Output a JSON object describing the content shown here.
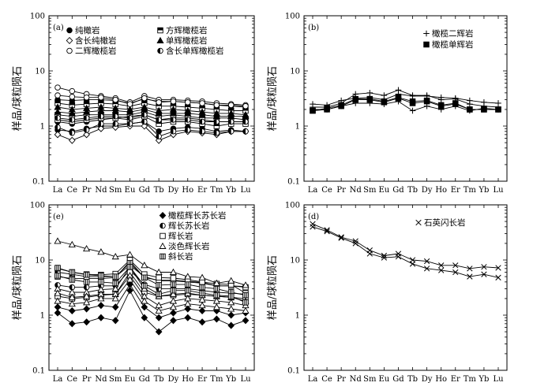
{
  "figure": {
    "y_axis_label": "样品/球粒陨石"
  },
  "chart_data": [
    {
      "type": "line",
      "panel_label": "(a)",
      "categories": [
        "La",
        "Ce",
        "Pr",
        "Nd",
        "Sm",
        "Eu",
        "Gd",
        "Tb",
        "Dy",
        "Ho",
        "Er",
        "Tm",
        "Yb",
        "Lu"
      ],
      "ylabel": "样品/球粒陨石",
      "yscale": "log",
      "ylim": [
        0.1,
        100
      ],
      "yticks": [
        "0.1",
        "1",
        "10",
        "100"
      ],
      "legend": [
        {
          "marker": "filled-circle",
          "label": "纯橄岩"
        },
        {
          "marker": "half-square",
          "label": "方辉橄榄岩"
        },
        {
          "marker": "open-diamond",
          "label": "含长纯橄岩"
        },
        {
          "marker": "filled-triangle",
          "label": "单辉橄榄岩"
        },
        {
          "marker": "open-circle",
          "label": "二辉橄榄岩"
        },
        {
          "marker": "half-circle",
          "label": "含长单辉橄榄岩"
        }
      ],
      "series": [
        {
          "name": "纯橄岩",
          "marker": "filled-circle",
          "values": [
            3.0,
            2.9,
            3.0,
            3.0,
            2.9,
            2.6,
            3.1,
            2.8,
            2.8,
            2.7,
            2.6,
            2.4,
            2.3,
            2.2
          ]
        },
        {
          "name": "纯橄岩",
          "marker": "filled-circle",
          "values": [
            1.2,
            1.1,
            1.2,
            1.3,
            1.4,
            1.5,
            1.6,
            1.3,
            1.4,
            1.4,
            1.3,
            1.2,
            1.2,
            1.2
          ]
        },
        {
          "name": "纯橄岩",
          "marker": "filled-circle",
          "values": [
            0.85,
            0.8,
            0.9,
            1.0,
            1.0,
            1.1,
            1.2,
            0.8,
            0.9,
            0.95,
            0.9,
            0.8,
            0.85,
            0.8
          ]
        },
        {
          "name": "方辉橄榄岩",
          "marker": "half-square",
          "values": [
            2.6,
            2.4,
            2.5,
            2.6,
            2.5,
            2.3,
            2.6,
            2.3,
            2.3,
            2.2,
            2.1,
            2.0,
            1.9,
            1.9
          ]
        },
        {
          "name": "方辉橄榄岩",
          "marker": "half-square",
          "values": [
            1.3,
            1.2,
            1.3,
            1.4,
            1.4,
            1.3,
            1.5,
            1.1,
            1.2,
            1.2,
            1.1,
            1.0,
            1.1,
            1.1
          ]
        },
        {
          "name": "方辉橄榄岩",
          "marker": "half-square",
          "values": [
            1.6,
            1.5,
            1.6,
            1.6,
            1.6,
            1.6,
            1.8,
            1.5,
            1.6,
            1.5,
            1.4,
            1.4,
            1.4,
            1.3
          ]
        },
        {
          "name": "含长纯橄岩",
          "marker": "open-diamond",
          "values": [
            0.7,
            0.55,
            0.7,
            0.9,
            0.95,
            1.0,
            1.0,
            0.55,
            0.7,
            0.8,
            0.75,
            0.7,
            0.8,
            0.8
          ]
        },
        {
          "name": "单辉橄榄岩",
          "marker": "filled-triangle",
          "values": [
            1.8,
            1.7,
            1.8,
            1.9,
            1.9,
            1.8,
            2.0,
            1.7,
            1.7,
            1.7,
            1.6,
            1.5,
            1.5,
            1.5
          ]
        },
        {
          "name": "单辉橄榄岩",
          "marker": "filled-triangle",
          "values": [
            2.2,
            2.0,
            2.1,
            2.2,
            2.1,
            2.0,
            2.2,
            1.9,
            2.0,
            1.9,
            1.8,
            1.7,
            1.7,
            1.6
          ]
        },
        {
          "name": "二辉橄榄岩",
          "marker": "open-circle",
          "values": [
            5.0,
            4.3,
            3.8,
            3.5,
            3.2,
            2.7,
            3.5,
            3.0,
            3.0,
            2.9,
            2.8,
            2.6,
            2.5,
            2.4
          ]
        },
        {
          "name": "二辉橄榄岩",
          "marker": "open-circle",
          "values": [
            3.6,
            3.4,
            3.3,
            3.3,
            3.0,
            2.5,
            3.2,
            2.7,
            2.8,
            2.7,
            2.6,
            2.4,
            2.4,
            2.3
          ]
        },
        {
          "name": "含长单辉橄榄岩",
          "marker": "half-circle",
          "values": [
            0.95,
            0.75,
            0.85,
            1.1,
            1.1,
            1.1,
            1.2,
            0.65,
            0.8,
            0.85,
            0.8,
            0.75,
            0.8,
            0.8
          ]
        },
        {
          "name": "含长单辉橄榄岩",
          "marker": "half-circle",
          "values": [
            1.4,
            1.3,
            1.4,
            1.5,
            1.5,
            1.4,
            1.6,
            1.3,
            1.3,
            1.3,
            1.2,
            1.2,
            1.2,
            1.2
          ]
        }
      ]
    },
    {
      "type": "line",
      "panel_label": "(b)",
      "categories": [
        "La",
        "Ce",
        "Pr",
        "Nd",
        "Sm",
        "Eu",
        "Gd",
        "Tb",
        "Dy",
        "Ho",
        "Er",
        "Tm",
        "Yb",
        "Lu"
      ],
      "ylabel": "样品/球粒陨石",
      "yscale": "log",
      "ylim": [
        0.1,
        100
      ],
      "yticks": [
        "0.1",
        "1",
        "10",
        "100"
      ],
      "legend": [
        {
          "marker": "plus",
          "label": "橄榄二辉岩"
        },
        {
          "marker": "filled-square",
          "label": "橄榄单辉岩"
        }
      ],
      "series": [
        {
          "name": "橄榄二辉岩",
          "marker": "plus",
          "values": [
            2.5,
            2.4,
            2.9,
            3.2,
            3.3,
            3.0,
            3.8,
            3.5,
            3.5,
            3.3,
            3.2,
            2.9,
            2.7,
            2.6
          ]
        },
        {
          "name": "橄榄二辉岩",
          "marker": "plus",
          "values": [
            2.2,
            2.2,
            2.6,
            3.8,
            4.0,
            3.6,
            4.5,
            3.6,
            3.6,
            3.0,
            3.1,
            2.5,
            2.3,
            2.2
          ]
        },
        {
          "name": "橄榄二辉岩",
          "marker": "plus",
          "values": [
            2.0,
            2.0,
            2.3,
            2.6,
            2.6,
            2.5,
            2.8,
            1.9,
            2.3,
            2.0,
            2.3,
            1.9,
            2.1,
            2.0
          ]
        },
        {
          "name": "橄榄单辉岩",
          "marker": "filled-square",
          "values": [
            1.9,
            2.0,
            2.3,
            3.0,
            3.0,
            2.7,
            3.2,
            2.6,
            2.8,
            2.3,
            2.5,
            2.0,
            2.0,
            2.0
          ]
        },
        {
          "name": "橄榄单辉岩",
          "marker": "filled-square",
          "values": [
            1.9,
            2.1,
            2.4,
            3.1,
            3.1,
            2.8,
            3.3,
            2.8,
            2.9,
            2.4,
            2.6,
            2.0,
            2.0,
            2.0
          ]
        }
      ]
    },
    {
      "type": "line",
      "panel_label": "(e)",
      "categories": [
        "La",
        "Ce",
        "Pr",
        "Nd",
        "Sm",
        "Eu",
        "Gd",
        "Tb",
        "Dy",
        "Ho",
        "Er",
        "Tm",
        "Yb",
        "Lu"
      ],
      "ylabel": "样品/球粒陨石",
      "yscale": "log",
      "ylim": [
        0.1,
        100
      ],
      "yticks": [
        "0.1",
        "1",
        "10",
        "100"
      ],
      "legend": [
        {
          "marker": "filled-diamond",
          "label": "橄榄辉长苏长岩"
        },
        {
          "marker": "half-circle",
          "label": "辉长苏长岩"
        },
        {
          "marker": "open-square",
          "label": "辉长岩"
        },
        {
          "marker": "open-triangle",
          "label": "淡色辉长岩"
        },
        {
          "marker": "striped-square",
          "label": "斜长岩"
        }
      ],
      "series": [
        {
          "name": "橄榄辉长苏长岩",
          "marker": "filled-diamond",
          "values": [
            1.1,
            0.7,
            0.75,
            0.9,
            0.8,
            2.8,
            0.9,
            0.5,
            0.8,
            0.9,
            0.75,
            0.85,
            0.65,
            0.8
          ]
        },
        {
          "name": "橄榄辉长苏长岩",
          "marker": "filled-diamond",
          "values": [
            1.4,
            1.2,
            1.3,
            1.5,
            1.4,
            3.6,
            1.4,
            0.9,
            1.1,
            1.3,
            1.2,
            1.2,
            1.0,
            1.1
          ]
        },
        {
          "name": "辉长苏长岩",
          "marker": "half-circle",
          "values": [
            6.0,
            5.5,
            5.0,
            5.0,
            5.0,
            8.0,
            5.0,
            4.2,
            4.2,
            4.0,
            3.8,
            3.4,
            3.4,
            3.3
          ]
        },
        {
          "name": "辉长苏长岩",
          "marker": "half-circle",
          "values": [
            3.5,
            3.2,
            3.2,
            3.4,
            3.4,
            6.5,
            3.6,
            3.0,
            3.0,
            3.0,
            2.8,
            2.6,
            2.5,
            2.4
          ]
        },
        {
          "name": "辉长岩",
          "marker": "open-square",
          "values": [
            5.0,
            4.6,
            4.6,
            4.6,
            4.8,
            9.5,
            4.8,
            4.3,
            4.3,
            4.1,
            3.9,
            3.4,
            3.4,
            3.2
          ]
        },
        {
          "name": "辉长岩",
          "marker": "open-square",
          "values": [
            2.2,
            2.0,
            2.1,
            2.3,
            2.4,
            6.0,
            2.6,
            2.2,
            2.3,
            2.4,
            2.3,
            2.2,
            2.1,
            2.0
          ]
        },
        {
          "name": "辉长岩",
          "marker": "open-square",
          "values": [
            7.0,
            6.0,
            5.5,
            5.4,
            5.6,
            10.0,
            5.5,
            4.8,
            4.7,
            4.4,
            4.0,
            3.7,
            3.6,
            2.5
          ]
        },
        {
          "name": "淡色辉长岩",
          "marker": "open-triangle",
          "values": [
            22.0,
            19.0,
            16.0,
            14.0,
            11.5,
            12.5,
            8.0,
            6.0,
            6.0,
            5.0,
            4.8,
            3.8,
            4.2,
            3.5
          ]
        },
        {
          "name": "淡色辉长岩",
          "marker": "open-triangle",
          "values": [
            3.0,
            2.6,
            2.6,
            2.9,
            3.0,
            7.5,
            3.0,
            2.2,
            2.4,
            2.5,
            2.3,
            2.2,
            2.1,
            1.8
          ]
        },
        {
          "name": "淡色辉长岩",
          "marker": "open-triangle",
          "values": [
            2.5,
            2.1,
            2.2,
            2.4,
            2.4,
            5.2,
            2.2,
            1.5,
            1.8,
            2.0,
            1.9,
            1.8,
            1.7,
            1.5
          ]
        },
        {
          "name": "淡色辉长岩",
          "marker": "open-triangle",
          "values": [
            1.8,
            1.6,
            1.7,
            2.0,
            2.0,
            4.4,
            1.8,
            1.2,
            1.4,
            1.6,
            1.5,
            1.4,
            1.3,
            1.2
          ]
        },
        {
          "name": "斜长岩",
          "marker": "striped-square",
          "values": [
            7.2,
            6.0,
            5.4,
            5.2,
            5.0,
            8.8,
            4.8,
            3.5,
            3.6,
            3.6,
            3.2,
            3.0,
            2.6,
            2.3
          ]
        },
        {
          "name": "斜长岩",
          "marker": "striped-square",
          "values": [
            5.2,
            4.4,
            4.0,
            4.0,
            3.8,
            7.5,
            3.4,
            2.4,
            2.8,
            2.8,
            2.5,
            2.3,
            2.2,
            1.7
          ]
        }
      ]
    },
    {
      "type": "line",
      "panel_label": "(d)",
      "categories": [
        "La",
        "Ce",
        "Pr",
        "Nd",
        "Sm",
        "Eu",
        "Gd",
        "Tb",
        "Dy",
        "Ho",
        "Er",
        "Tm",
        "Yb",
        "Lu"
      ],
      "ylabel": "样品/球粒陨石",
      "yscale": "log",
      "ylim": [
        0.1,
        100
      ],
      "yticks": [
        "0.1",
        "1",
        "10",
        "100"
      ],
      "legend": [
        {
          "marker": "cross",
          "label": "石英闪长岩"
        }
      ],
      "series": [
        {
          "name": "石英闪长岩",
          "marker": "cross",
          "values": [
            45,
            35,
            26,
            22,
            15,
            12,
            13,
            10,
            9.5,
            8.0,
            8.0,
            7.0,
            7.5,
            7.2
          ]
        },
        {
          "name": "石英闪长岩",
          "marker": "cross",
          "values": [
            40,
            33,
            25,
            20,
            13,
            11,
            11.5,
            8.5,
            7.0,
            6.5,
            6.0,
            5.0,
            5.5,
            4.8
          ]
        }
      ]
    }
  ]
}
